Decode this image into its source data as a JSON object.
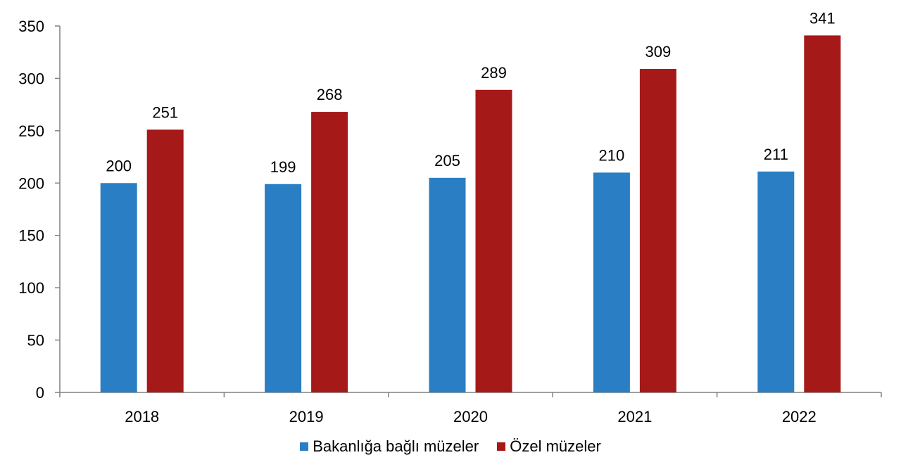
{
  "chart_data": {
    "type": "bar",
    "categories": [
      "2018",
      "2019",
      "2020",
      "2021",
      "2022"
    ],
    "series": [
      {
        "name": "Bakanlığa bağlı müzeler",
        "values": [
          200,
          199,
          205,
          210,
          211
        ],
        "color": "#2a7ec4"
      },
      {
        "name": "Özel müzeler",
        "values": [
          251,
          268,
          289,
          309,
          341
        ],
        "color": "#a51919"
      }
    ],
    "ylim": [
      0,
      350
    ],
    "yticks": [
      "0",
      "50",
      "100",
      "150",
      "200",
      "250",
      "300",
      "350"
    ],
    "title": "",
    "xlabel": "",
    "ylabel": "",
    "grid": false,
    "legend_position": "bottom"
  }
}
